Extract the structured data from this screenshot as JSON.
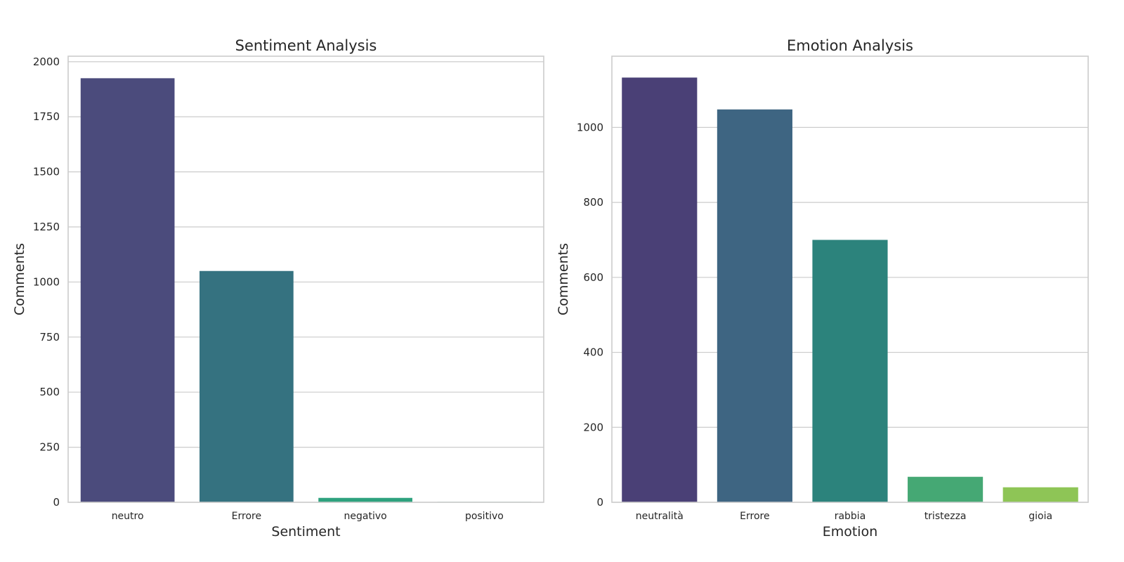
{
  "chart_data": [
    {
      "type": "bar",
      "title": "Sentiment Analysis",
      "xlabel": "Sentiment",
      "ylabel": "Comments",
      "categories": [
        "neutro",
        "Errore",
        "negativo",
        "positivo"
      ],
      "values": [
        1925,
        1050,
        20,
        2
      ],
      "colors": [
        "#4b4b7c",
        "#357280",
        "#2ea27e",
        "#3ba676"
      ],
      "ylim": [
        0,
        2025
      ],
      "yticks": [
        0,
        250,
        500,
        750,
        1000,
        1250,
        1500,
        1750,
        2000
      ],
      "grid": true,
      "legend": "none"
    },
    {
      "type": "bar",
      "title": "Emotion Analysis",
      "xlabel": "Emotion",
      "ylabel": "Comments",
      "categories": [
        "neutralità",
        "Errore",
        "rabbia",
        "tristezza",
        "gioia"
      ],
      "values": [
        1133,
        1048,
        700,
        68,
        40
      ],
      "colors": [
        "#4a4076",
        "#3e6582",
        "#2c837c",
        "#45a874",
        "#8ec556"
      ],
      "ylim": [
        0,
        1190
      ],
      "yticks": [
        0,
        200,
        400,
        600,
        800,
        1000
      ],
      "grid": true,
      "legend": "none"
    }
  ]
}
